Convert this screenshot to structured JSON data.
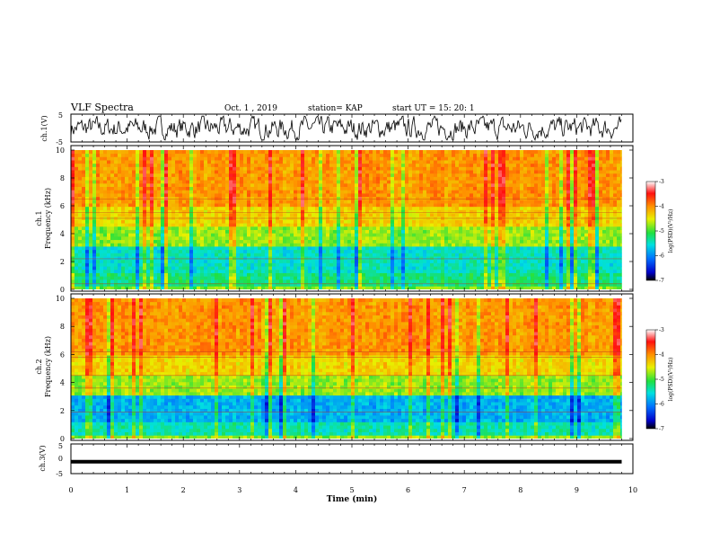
{
  "header": {
    "title": "VLF Spectra",
    "date": "Oct. 1 , 2019",
    "station": "station= KAP",
    "start": "start UT =  15: 20: 1"
  },
  "chart_data": [
    {
      "type": "line",
      "name": "ch1-waveform",
      "ylabel": "ch.1(V)",
      "ylim": [
        -5,
        5
      ],
      "yticks": [
        "5",
        "-5"
      ],
      "xlim": [
        0,
        10
      ]
    },
    {
      "type": "heatmap",
      "name": "ch1-spectrogram",
      "ylabel": [
        "ch.1",
        "Frequency (kHz)"
      ],
      "ylim": [
        0,
        10
      ],
      "yticks": [
        "0",
        "2",
        "4",
        "6",
        "8",
        "10"
      ],
      "xlim": [
        0,
        10
      ],
      "data_extent_min": 9.8,
      "colorbar": {
        "label": "log(PSD)(V²/Hz)",
        "range": [
          -7,
          -3
        ],
        "ticks": [
          "-3",
          "-4",
          "-5",
          "-6",
          "-7"
        ]
      }
    },
    {
      "type": "heatmap",
      "name": "ch2-spectrogram",
      "ylabel": [
        "ch.2",
        "Frequency (kHz)"
      ],
      "ylim": [
        0,
        10
      ],
      "yticks": [
        "0",
        "2",
        "4",
        "6",
        "8",
        "10"
      ],
      "xlim": [
        0,
        10
      ],
      "data_extent_min": 9.8,
      "colorbar": {
        "label": "log(PSD)(V²/Hz)",
        "range": [
          -7,
          -3
        ],
        "ticks": [
          "-3",
          "-4",
          "-5",
          "-6",
          "-7"
        ]
      }
    },
    {
      "type": "line",
      "name": "ch3-waveform",
      "ylabel": "ch.3(V)",
      "ylim": [
        -5,
        5
      ],
      "yticks": [
        "5",
        "0",
        "-5"
      ],
      "level_v": -1,
      "xlim": [
        0,
        10
      ],
      "xlabel": "Time (min)",
      "xticks": [
        "0",
        "1",
        "2",
        "3",
        "4",
        "5",
        "6",
        "7",
        "8",
        "9",
        "10"
      ]
    }
  ]
}
